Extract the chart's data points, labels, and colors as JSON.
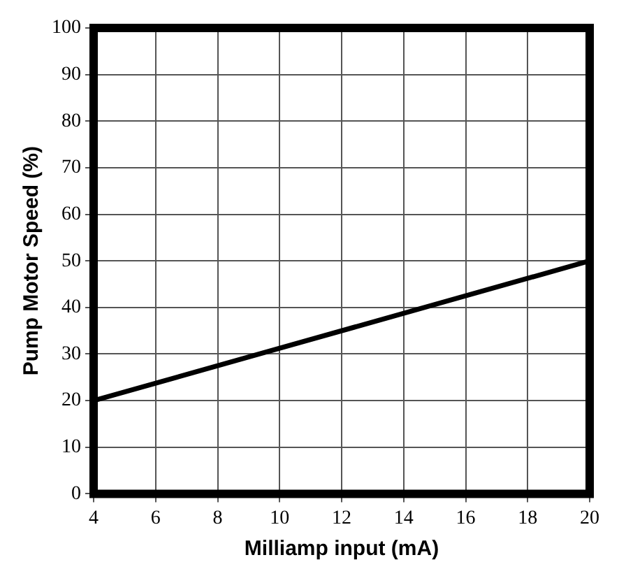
{
  "chart_data": {
    "type": "line",
    "xlabel": "Milliamp input (mA)",
    "ylabel": "Pump Motor Speed (%)",
    "x": [
      4,
      20
    ],
    "series": [
      {
        "color": "#000000",
        "values": [
          20,
          50
        ]
      }
    ],
    "xlim": [
      4,
      20
    ],
    "xticks": [
      4,
      6,
      8,
      10,
      12,
      14,
      16,
      18,
      20
    ],
    "ylim": [
      0,
      100
    ],
    "yticks": [
      0,
      10,
      20,
      30,
      40,
      50,
      60,
      70,
      80,
      90,
      100
    ],
    "grid": true,
    "legend": false,
    "marker": "none",
    "line_style": "solid"
  }
}
